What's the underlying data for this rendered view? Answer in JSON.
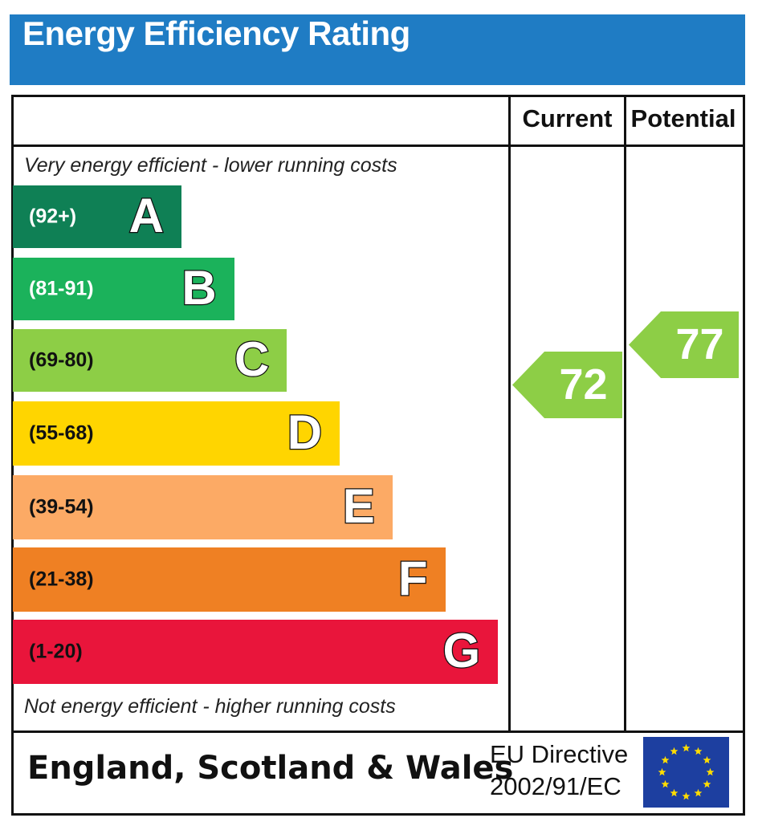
{
  "title": "Energy Efficiency Rating",
  "columns": {
    "current": "Current",
    "potential": "Potential"
  },
  "top_note": "Very energy efficient - lower running costs",
  "bottom_note": "Not energy efficient - higher running costs",
  "footer": {
    "region": "England, Scotland & Wales",
    "directive_line1": "EU Directive",
    "directive_line2": "2002/91/EC"
  },
  "colors": {
    "title_bar": "#1f7cc4",
    "eu_flag": "#1d3fa0",
    "eu_stars": "#ffdd00"
  },
  "chart_data": {
    "type": "bar",
    "bands": [
      {
        "letter": "A",
        "range": "(92+)",
        "min": 92,
        "max": 100,
        "color": "#0f8055",
        "text_color": "#ffffff"
      },
      {
        "letter": "B",
        "range": "(81-91)",
        "min": 81,
        "max": 91,
        "color": "#1bb25b",
        "text_color": "#ffffff"
      },
      {
        "letter": "C",
        "range": "(69-80)",
        "min": 69,
        "max": 80,
        "color": "#8dce46",
        "text_color": "#111111"
      },
      {
        "letter": "D",
        "range": "(55-68)",
        "min": 55,
        "max": 68,
        "color": "#ffd500",
        "text_color": "#111111"
      },
      {
        "letter": "E",
        "range": "(39-54)",
        "min": 39,
        "max": 54,
        "color": "#fcaa65",
        "text_color": "#111111"
      },
      {
        "letter": "F",
        "range": "(21-38)",
        "min": 21,
        "max": 38,
        "color": "#ef8023",
        "text_color": "#111111"
      },
      {
        "letter": "G",
        "range": "(1-20)",
        "min": 1,
        "max": 20,
        "color": "#e9153b",
        "text_color": "#111111"
      }
    ],
    "current": {
      "value": 72,
      "band": "C",
      "color": "#8dce46"
    },
    "potential": {
      "value": 77,
      "band": "C",
      "color": "#8dce46"
    }
  }
}
